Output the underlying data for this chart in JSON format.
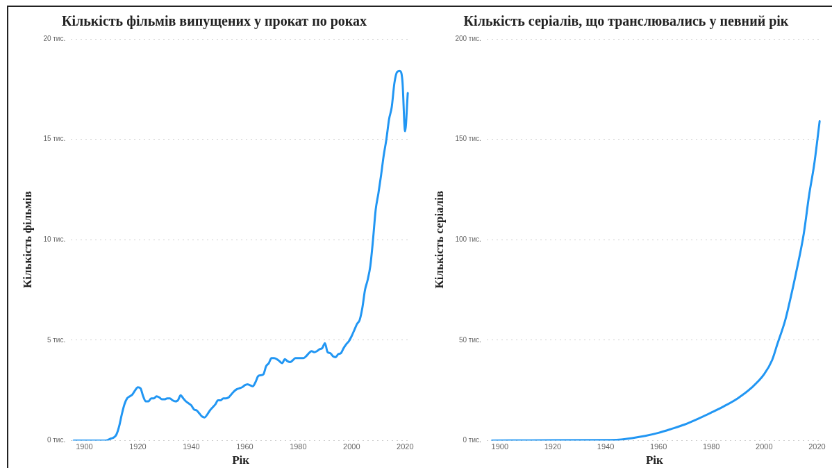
{
  "chart_data": [
    {
      "type": "line",
      "title": "Кількість фільмів випущених у прокат по роках",
      "xlabel": "Рік",
      "ylabel": "Кількість фільмів",
      "xlim": [
        1895,
        2022
      ],
      "xticks": [
        1900,
        1920,
        1940,
        1960,
        1980,
        2000,
        2020
      ],
      "ylim": [
        0,
        20
      ],
      "yticks": [
        {
          "value": 0,
          "label": "0 тис."
        },
        {
          "value": 5,
          "label": "5 тис."
        },
        {
          "value": 10,
          "label": "10 тис."
        },
        {
          "value": 15,
          "label": "15 тис."
        },
        {
          "value": 20,
          "label": "20 тис."
        }
      ],
      "grid": "y",
      "marker": "none",
      "line_style": "solid",
      "series": [
        {
          "color": "#2196f3",
          "x": [
            1896,
            1900,
            1905,
            1908,
            1910,
            1911,
            1912,
            1913,
            1914,
            1915,
            1916,
            1917,
            1918,
            1919,
            1920,
            1921,
            1922,
            1923,
            1924,
            1925,
            1926,
            1927,
            1928,
            1929,
            1930,
            1931,
            1932,
            1933,
            1934,
            1935,
            1936,
            1937,
            1938,
            1939,
            1940,
            1941,
            1942,
            1943,
            1944,
            1945,
            1946,
            1947,
            1948,
            1949,
            1950,
            1951,
            1952,
            1953,
            1954,
            1955,
            1956,
            1957,
            1958,
            1959,
            1960,
            1961,
            1962,
            1963,
            1964,
            1965,
            1966,
            1967,
            1968,
            1969,
            1970,
            1971,
            1972,
            1973,
            1974,
            1975,
            1976,
            1977,
            1978,
            1979,
            1980,
            1981,
            1982,
            1983,
            1984,
            1985,
            1986,
            1987,
            1988,
            1989,
            1990,
            1991,
            1992,
            1993,
            1994,
            1995,
            1996,
            1997,
            1998,
            1999,
            2000,
            2001,
            2002,
            2003,
            2004,
            2005,
            2006,
            2007,
            2008,
            2009,
            2010,
            2011,
            2012,
            2013,
            2014,
            2015,
            2016,
            2017,
            2018,
            2019,
            2020,
            2021
          ],
          "values": [
            0,
            0,
            0,
            0,
            0.1,
            0.15,
            0.3,
            0.7,
            1.3,
            1.8,
            2.1,
            2.2,
            2.3,
            2.5,
            2.65,
            2.6,
            2.2,
            1.95,
            1.95,
            2.1,
            2.1,
            2.2,
            2.15,
            2.05,
            2.05,
            2.1,
            2.1,
            2,
            1.95,
            2,
            2.25,
            2.1,
            1.95,
            1.85,
            1.75,
            1.55,
            1.5,
            1.35,
            1.2,
            1.15,
            1.3,
            1.5,
            1.65,
            1.8,
            2,
            2,
            2.1,
            2.1,
            2.15,
            2.3,
            2.45,
            2.55,
            2.6,
            2.65,
            2.75,
            2.8,
            2.75,
            2.7,
            2.9,
            3.2,
            3.25,
            3.3,
            3.7,
            3.85,
            4.1,
            4.1,
            4.05,
            3.95,
            3.85,
            4.05,
            3.95,
            3.9,
            4,
            4.1,
            4.1,
            4.1,
            4.1,
            4.2,
            4.35,
            4.45,
            4.4,
            4.45,
            4.55,
            4.6,
            4.85,
            4.4,
            4.35,
            4.2,
            4.15,
            4.3,
            4.35,
            4.6,
            4.8,
            4.95,
            5.2,
            5.5,
            5.8,
            6,
            6.6,
            7.5,
            8,
            8.7,
            10,
            11.5,
            12.3,
            13.2,
            14.2,
            15,
            16,
            16.6,
            17.8,
            18.35,
            18.4,
            17.9,
            15.4,
            17.3
          ]
        }
      ]
    },
    {
      "type": "line",
      "title": "Кількість серіалів, що транслювались у певний рік",
      "xlabel": "Рік",
      "ylabel": "Кількість серіалів",
      "xlim": [
        1895,
        2022
      ],
      "xticks": [
        1900,
        1920,
        1940,
        1960,
        1980,
        2000,
        2020
      ],
      "ylim": [
        0,
        200
      ],
      "yticks": [
        {
          "value": 0,
          "label": "0 тис."
        },
        {
          "value": 50,
          "label": "50 тис."
        },
        {
          "value": 100,
          "label": "100 тис."
        },
        {
          "value": 150,
          "label": "150 тис."
        },
        {
          "value": 200,
          "label": "200 тис."
        }
      ],
      "grid": "y",
      "marker": "none",
      "line_style": "solid",
      "series": [
        {
          "color": "#2196f3",
          "x": [
            1897,
            1920,
            1940,
            1945,
            1950,
            1955,
            1960,
            1965,
            1970,
            1975,
            1980,
            1985,
            1990,
            1995,
            2000,
            2003,
            2005,
            2008,
            2010,
            2012,
            2015,
            2017,
            2019,
            2021
          ],
          "values": [
            0,
            0.1,
            0.2,
            0.4,
            1.2,
            2.3,
            3.8,
            5.8,
            8,
            10.8,
            13.9,
            17.2,
            21,
            26,
            33,
            40,
            48,
            60,
            71,
            83,
            103,
            122,
            138,
            159
          ]
        }
      ]
    }
  ]
}
